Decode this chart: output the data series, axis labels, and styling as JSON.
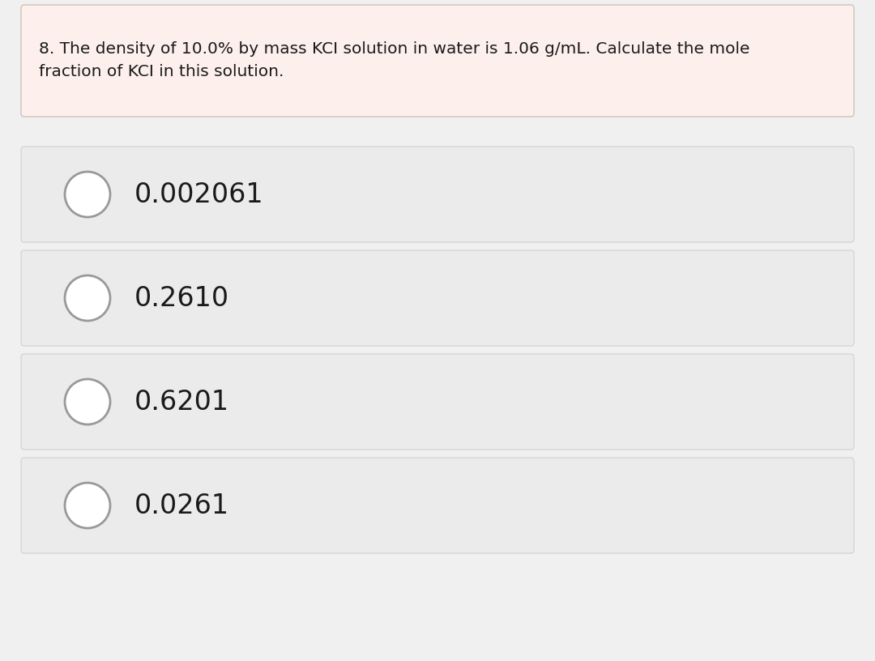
{
  "question": "8. The density of 10.0% by mass KCI solution in water is 1.06 g/mL. Calculate the mole\nfraction of KCI in this solution.",
  "options": [
    "0.002061",
    "0.2610",
    "0.6201",
    "0.0261"
  ],
  "bg_color": "#f0f0f0",
  "question_box_bg": "#fdf0ec",
  "question_box_border": "#d0c0bb",
  "option_box_bg": "#ebebeb",
  "option_box_border": "#d0d0d0",
  "text_color": "#1a1a1a",
  "circle_edge_color": "#999999",
  "circle_fill_color": "#ffffff",
  "question_fontsize": 14.5,
  "option_fontsize": 24,
  "figsize": [
    10.8,
    8.16
  ],
  "dpi": 100
}
